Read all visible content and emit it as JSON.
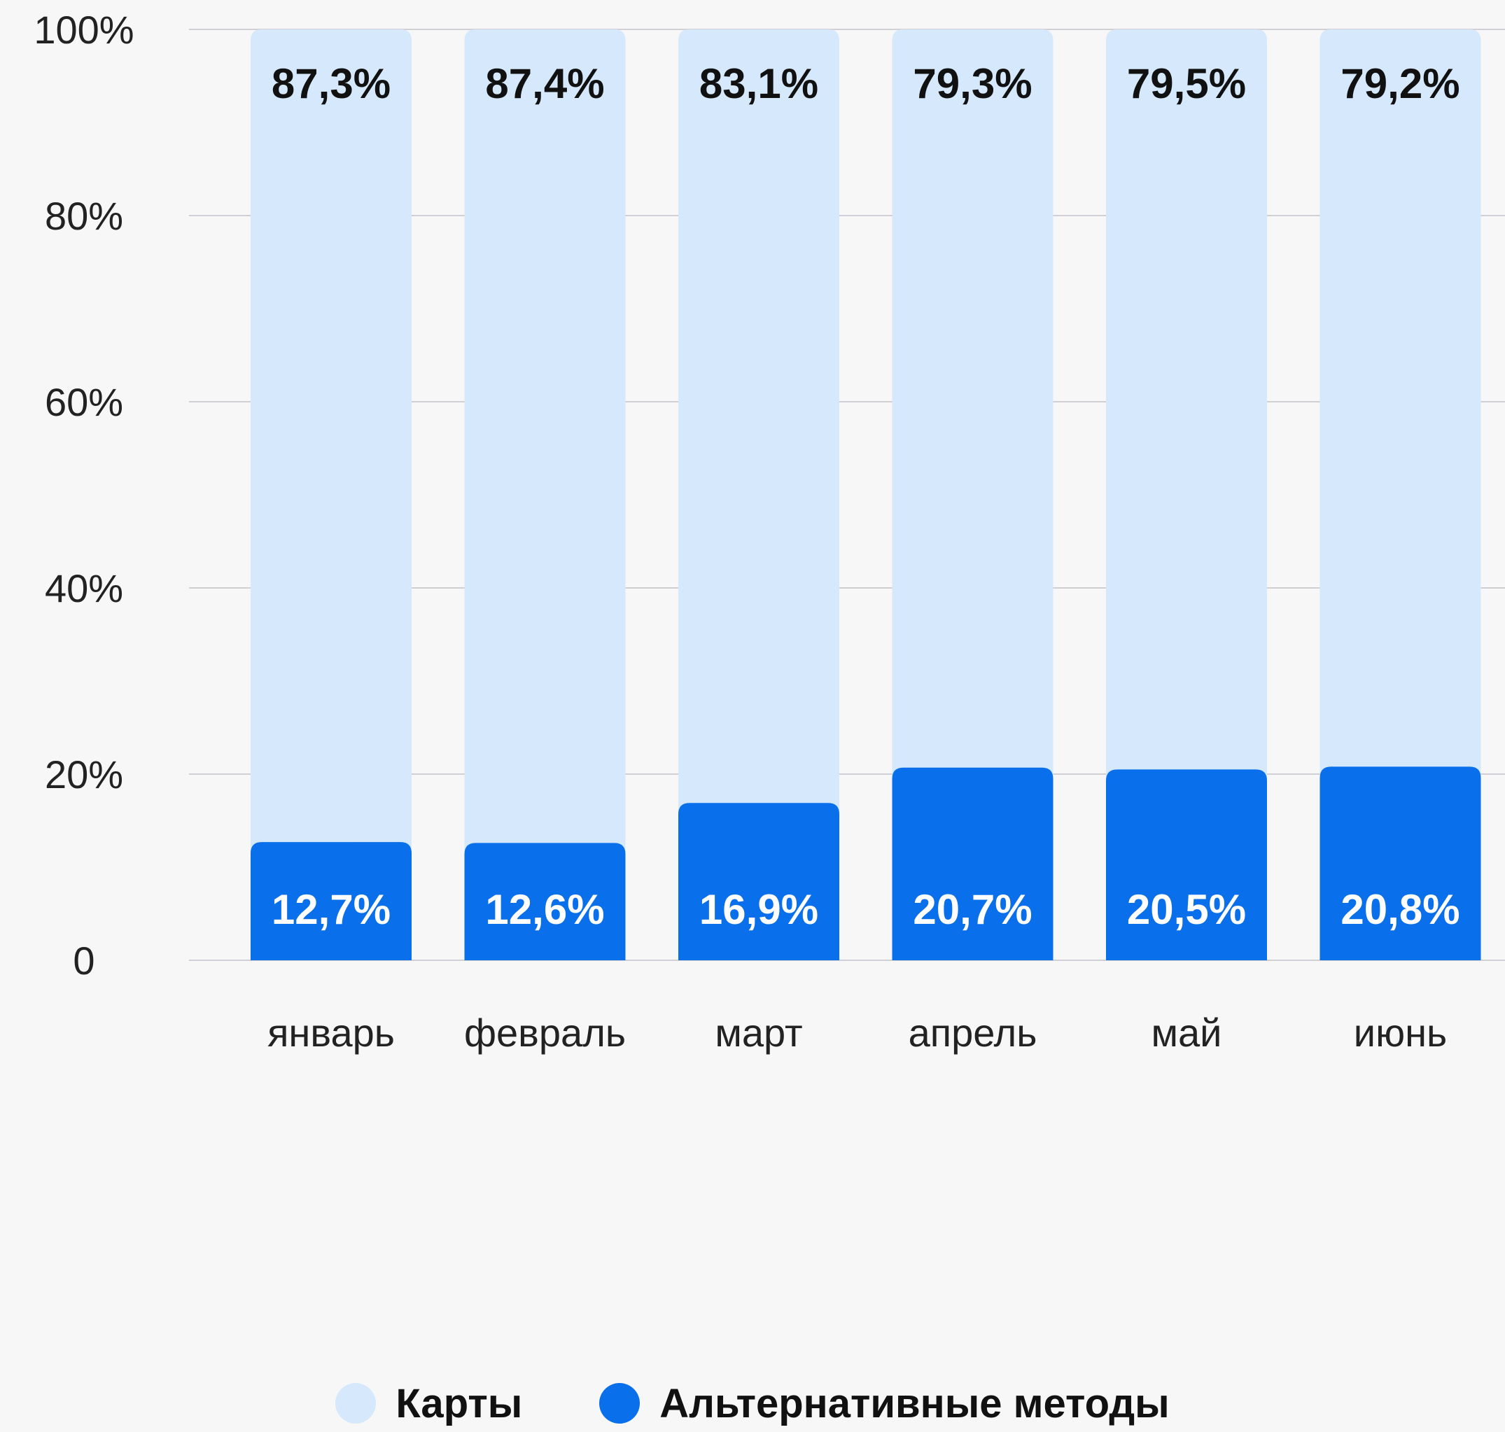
{
  "chart_data": {
    "type": "bar",
    "stacked": true,
    "categories": [
      "январь",
      "февраль",
      "март",
      "апрель",
      "май",
      "июнь"
    ],
    "series": [
      {
        "name": "Альтернативные методы",
        "values": [
          12.7,
          12.6,
          16.9,
          20.7,
          20.5,
          20.8
        ],
        "labels": [
          "12,7%",
          "12,6%",
          "16,9%",
          "20,7%",
          "20,5%",
          "20,8%"
        ],
        "color": "#0a6fea"
      },
      {
        "name": "Карты",
        "values": [
          87.3,
          87.4,
          83.1,
          79.3,
          79.5,
          79.2
        ],
        "labels": [
          "87,3%",
          "87,4%",
          "83,1%",
          "79,3%",
          "79,5%",
          "79,2%"
        ],
        "color": "#d6e8fb"
      }
    ],
    "y_ticks": [
      {
        "value": 0,
        "label": "0"
      },
      {
        "value": 20,
        "label": "20%"
      },
      {
        "value": 40,
        "label": "40%"
      },
      {
        "value": 60,
        "label": "60%"
      },
      {
        "value": 80,
        "label": "80%"
      },
      {
        "value": 100,
        "label": "100%"
      }
    ],
    "ylim": [
      0,
      100
    ],
    "grid": true,
    "legend_position": "bottom-center"
  },
  "legend": {
    "items": [
      {
        "label": "Карты",
        "color": "#d6e8fb"
      },
      {
        "label": "Альтернативные методы",
        "color": "#0a6fea"
      }
    ]
  }
}
